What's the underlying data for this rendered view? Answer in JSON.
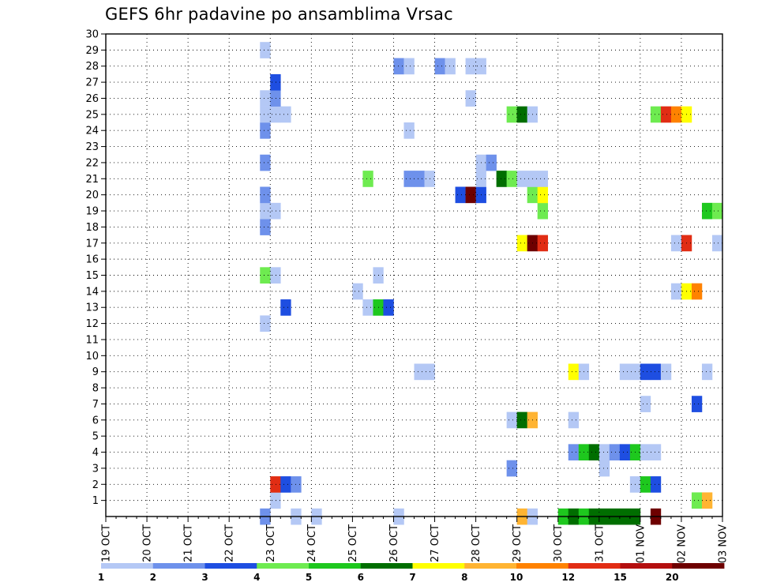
{
  "chart_data": {
    "type": "heatmap",
    "title": "GEFS 6hr padavine po ansamblima Vrsac",
    "xlabel": "",
    "ylabel": "",
    "x_tick_labels": [
      "19 OCT",
      "20 OCT",
      "21 OCT",
      "22 OCT",
      "23 OCT",
      "24 OCT",
      "25 OCT",
      "26 OCT",
      "27 OCT",
      "28 OCT",
      "29 OCT",
      "30 OCT",
      "31 OCT",
      "01 NOV",
      "02 NOV",
      "03 NOV"
    ],
    "x_unit": "6-hour step from 19 OCT 00Z",
    "xlim": [
      0,
      60
    ],
    "y_tick_labels": [
      "1",
      "2",
      "3",
      "4",
      "5",
      "6",
      "7",
      "8",
      "9",
      "10",
      "11",
      "12",
      "13",
      "14",
      "15",
      "16",
      "17",
      "18",
      "19",
      "20",
      "21",
      "22",
      "23",
      "24",
      "25",
      "26",
      "27",
      "28",
      "29",
      "30"
    ],
    "ylim": [
      0,
      30
    ],
    "grid": true,
    "colorbar": {
      "labels": [
        "1",
        "2",
        "3",
        "4",
        "5",
        "6",
        "7",
        "8",
        "10",
        "12",
        "15",
        "20"
      ],
      "colors": [
        "#b4c8f5",
        "#6e91eb",
        "#1e4ee1",
        "#6eeb50",
        "#1ec81e",
        "#006e00",
        "#ffff00",
        "#ffb432",
        "#ff8200",
        "#e12d14",
        "#b40f0f",
        "#6e0000"
      ]
    },
    "cells": [
      [
        15.5,
        0,
        1
      ],
      [
        18.5,
        0,
        0
      ],
      [
        20.5,
        0,
        0
      ],
      [
        28.5,
        0,
        0
      ],
      [
        40.5,
        0,
        7
      ],
      [
        41.5,
        0,
        0
      ],
      [
        44.5,
        0,
        4
      ],
      [
        45.5,
        0,
        5
      ],
      [
        46.5,
        0,
        4
      ],
      [
        47.5,
        0,
        5
      ],
      [
        48.5,
        0,
        5
      ],
      [
        49.5,
        0,
        5
      ],
      [
        50.5,
        0,
        5
      ],
      [
        51.5,
        0,
        5
      ],
      [
        53.5,
        0,
        11
      ],
      [
        16.5,
        1,
        0
      ],
      [
        57.5,
        1,
        3
      ],
      [
        58.5,
        1,
        7
      ],
      [
        16.5,
        2,
        9
      ],
      [
        17.5,
        2,
        2
      ],
      [
        18.5,
        2,
        1
      ],
      [
        51.5,
        2,
        0
      ],
      [
        52.5,
        2,
        4
      ],
      [
        53.5,
        2,
        2
      ],
      [
        39.5,
        3,
        1
      ],
      [
        48.5,
        3,
        0
      ],
      [
        45.5,
        4,
        1
      ],
      [
        46.5,
        4,
        4
      ],
      [
        47.5,
        4,
        5
      ],
      [
        48.5,
        4,
        0
      ],
      [
        49.5,
        4,
        1
      ],
      [
        50.5,
        4,
        2
      ],
      [
        51.5,
        4,
        4
      ],
      [
        52.5,
        4,
        0
      ],
      [
        53.5,
        4,
        0
      ],
      [
        39.5,
        6,
        0
      ],
      [
        40.5,
        6,
        5
      ],
      [
        41.5,
        6,
        7
      ],
      [
        45.5,
        6,
        0
      ],
      [
        52.5,
        7,
        0
      ],
      [
        57.5,
        7,
        2
      ],
      [
        30.5,
        9,
        0
      ],
      [
        31.5,
        9,
        0
      ],
      [
        45.5,
        9,
        6
      ],
      [
        46.5,
        9,
        0
      ],
      [
        50.5,
        9,
        0
      ],
      [
        51.5,
        9,
        0
      ],
      [
        52.5,
        9,
        2
      ],
      [
        53.5,
        9,
        2
      ],
      [
        54.5,
        9,
        0
      ],
      [
        58.5,
        9,
        0
      ],
      [
        15.5,
        12,
        0
      ],
      [
        17.5,
        13,
        2
      ],
      [
        25.5,
        13,
        0
      ],
      [
        26.5,
        13,
        4
      ],
      [
        27.5,
        13,
        2
      ],
      [
        24.5,
        14,
        0
      ],
      [
        55.5,
        14,
        0
      ],
      [
        56.5,
        14,
        6
      ],
      [
        57.5,
        14,
        8
      ],
      [
        15.5,
        15,
        3
      ],
      [
        16.5,
        15,
        0
      ],
      [
        26.5,
        15,
        0
      ],
      [
        40.5,
        17,
        6
      ],
      [
        41.5,
        17,
        11
      ],
      [
        42.5,
        17,
        9
      ],
      [
        55.5,
        17,
        0
      ],
      [
        56.5,
        17,
        9
      ],
      [
        59.5,
        17,
        0
      ],
      [
        15.5,
        18,
        1
      ],
      [
        15.5,
        19,
        0
      ],
      [
        16.5,
        19,
        0
      ],
      [
        42.5,
        19,
        3
      ],
      [
        58.5,
        19,
        4
      ],
      [
        59.5,
        19,
        3
      ],
      [
        15.5,
        20,
        1
      ],
      [
        34.5,
        20,
        2
      ],
      [
        35.5,
        20,
        11
      ],
      [
        36.5,
        20,
        2
      ],
      [
        41.5,
        20,
        3
      ],
      [
        42.5,
        20,
        6
      ],
      [
        25.5,
        21,
        3
      ],
      [
        29.5,
        21,
        1
      ],
      [
        30.5,
        21,
        1
      ],
      [
        31.5,
        21,
        0
      ],
      [
        36.5,
        21,
        0
      ],
      [
        38.5,
        21,
        5
      ],
      [
        39.5,
        21,
        3
      ],
      [
        40.5,
        21,
        0
      ],
      [
        41.5,
        21,
        0
      ],
      [
        42.5,
        21,
        0
      ],
      [
        15.5,
        22,
        1
      ],
      [
        36.5,
        22,
        0
      ],
      [
        37.5,
        22,
        1
      ],
      [
        15.5,
        24,
        1
      ],
      [
        29.5,
        24,
        0
      ],
      [
        15.5,
        25,
        0
      ],
      [
        16.5,
        25,
        0
      ],
      [
        17.5,
        25,
        0
      ],
      [
        39.5,
        25,
        3
      ],
      [
        40.5,
        25,
        5
      ],
      [
        41.5,
        25,
        0
      ],
      [
        53.5,
        25,
        3
      ],
      [
        54.5,
        25,
        9
      ],
      [
        55.5,
        25,
        8
      ],
      [
        56.5,
        25,
        6
      ],
      [
        15.5,
        26,
        0
      ],
      [
        16.5,
        26,
        1
      ],
      [
        35.5,
        26,
        0
      ],
      [
        16.5,
        27,
        2
      ],
      [
        28.5,
        28,
        1
      ],
      [
        29.5,
        28,
        0
      ],
      [
        32.5,
        28,
        1
      ],
      [
        33.5,
        28,
        0
      ],
      [
        35.5,
        28,
        0
      ],
      [
        36.5,
        28,
        0
      ],
      [
        15.5,
        29,
        0
      ]
    ]
  }
}
